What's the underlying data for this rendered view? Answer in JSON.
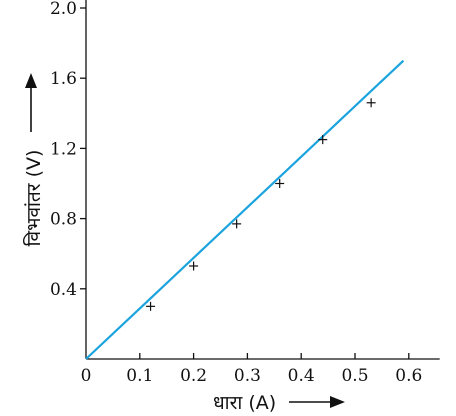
{
  "chart_data": {
    "type": "line",
    "title": "",
    "xlabel": "धारा (A)",
    "ylabel": "विभवांतर (V)",
    "xlim": [
      0,
      0.65
    ],
    "ylim": [
      0,
      2.1
    ],
    "x_ticks": [
      0,
      0.1,
      0.2,
      0.3,
      0.4,
      0.5,
      0.6
    ],
    "x_tick_labels": [
      "0",
      "0.1",
      "0.2",
      "0.3",
      "0.4",
      "0.5",
      "0.6"
    ],
    "y_ticks": [
      0.4,
      0.8,
      1.2,
      1.6,
      2.0
    ],
    "y_tick_labels": [
      "0.4",
      "0.8",
      "1.2",
      "1.6",
      "2.0"
    ],
    "grid": false,
    "legend": "none",
    "colors": {
      "line": "#1aa3dd",
      "markers": "#111111",
      "axes": "#111111"
    },
    "series": [
      {
        "kind": "points",
        "x": [
          0.12,
          0.2,
          0.28,
          0.36,
          0.44,
          0.53
        ],
        "y": [
          0.3,
          0.53,
          0.77,
          1.0,
          1.25,
          1.46
        ]
      },
      {
        "kind": "fit-line",
        "x": [
          0.0,
          0.59
        ],
        "y": [
          0.0,
          1.7
        ]
      }
    ]
  }
}
